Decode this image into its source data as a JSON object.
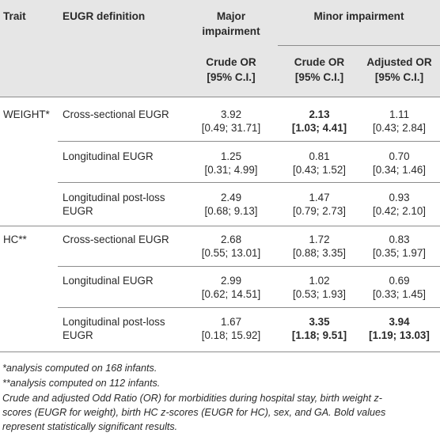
{
  "table": {
    "headers": {
      "trait": "Trait",
      "definition": "EUGR definition",
      "major_l1": "Major",
      "major_l2": "impairment",
      "minor": "Minor impairment",
      "crude_l1": "Crude OR",
      "crude_l2": "[95% C.I.]",
      "adjusted_l1": "Adjusted OR",
      "adjusted_l2": "[95% C.I.]"
    },
    "rows": [
      {
        "trait": "WEIGHT*",
        "def1": "Cross-sectional EUGR",
        "def2": "",
        "major_or": "3.92",
        "major_ci": "[0.49; 31.71]",
        "minor_or": "2.13",
        "minor_ci": "[1.03; 4.41]",
        "adj_or": "1.11",
        "adj_ci": "[0.43; 2.84]"
      },
      {
        "trait": "",
        "def1": "Longitudinal EUGR",
        "def2": "",
        "major_or": "1.25",
        "major_ci": "[0.31; 4.99]",
        "minor_or": "0.81",
        "minor_ci": "[0.43; 1.52]",
        "adj_or": "0.70",
        "adj_ci": "[0.34; 1.46]"
      },
      {
        "trait": "",
        "def1": "Longitudinal post-loss",
        "def2": "EUGR",
        "major_or": "2.49",
        "major_ci": "[0.68; 9.13]",
        "minor_or": "1.47",
        "minor_ci": "[0.79; 2.73]",
        "adj_or": "0.93",
        "adj_ci": "[0.42; 2.10]"
      },
      {
        "trait": "HC**",
        "def1": "Cross-sectional EUGR",
        "def2": "",
        "major_or": "2.68",
        "major_ci": "[0.55; 13.01]",
        "minor_or": "1.72",
        "minor_ci": "[0.88; 3.35]",
        "adj_or": "0.83",
        "adj_ci": "[0.35; 1.97]"
      },
      {
        "trait": "",
        "def1": "Longitudinal EUGR",
        "def2": "",
        "major_or": "2.99",
        "major_ci": "[0.62; 14.51]",
        "minor_or": "1.02",
        "minor_ci": "[0.53; 1.93]",
        "adj_or": "0.69",
        "adj_ci": "[0.33; 1.45]"
      },
      {
        "trait": "",
        "def1": "Longitudinal post-loss",
        "def2": "EUGR",
        "major_or": "1.67",
        "major_ci": "[0.18; 15.92]",
        "minor_or": "3.35",
        "minor_ci": "[1.18; 9.51]",
        "adj_or": "3.94",
        "adj_ci": "[1.19; 13.03]"
      }
    ]
  },
  "footnotes": {
    "f1": "*analysis computed on 168 infants.",
    "f2": "**analysis computed on 112 infants.",
    "f3_l1": "Crude and adjusted Odd Ratio (OR) for morbidities during hospital stay, birth weight z-",
    "f3_l2": "scores (EUGR for weight), birth HC z-scores (EUGR for HC), sex, and GA. Bold values",
    "f3_l3": "represent statistically significant results."
  }
}
